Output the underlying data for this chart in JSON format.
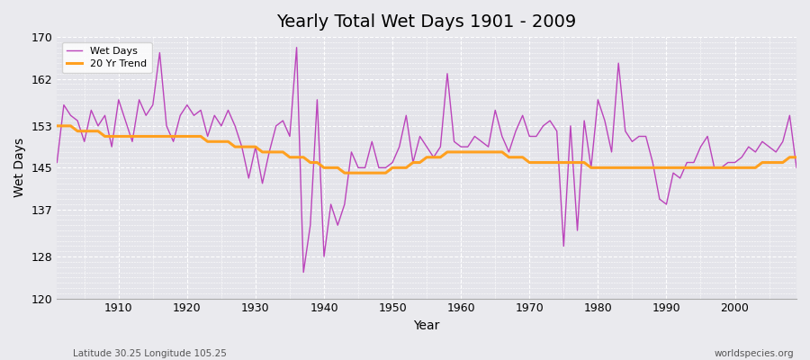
{
  "title": "Yearly Total Wet Days 1901 - 2009",
  "xlabel": "Year",
  "ylabel": "Wet Days",
  "footnote_left": "Latitude 30.25 Longitude 105.25",
  "footnote_right": "worldspecies.org",
  "ylim": [
    120,
    170
  ],
  "yticks": [
    120,
    128,
    137,
    145,
    153,
    162,
    170
  ],
  "line_color": "#bb44bb",
  "trend_color": "#ffa020",
  "bg_color": "#e8e8ec",
  "plot_bg_color": "#e0e0e8",
  "years": [
    1901,
    1902,
    1903,
    1904,
    1905,
    1906,
    1907,
    1908,
    1909,
    1910,
    1911,
    1912,
    1913,
    1914,
    1915,
    1916,
    1917,
    1918,
    1919,
    1920,
    1921,
    1922,
    1923,
    1924,
    1925,
    1926,
    1927,
    1928,
    1929,
    1930,
    1931,
    1932,
    1933,
    1934,
    1935,
    1936,
    1937,
    1938,
    1939,
    1940,
    1941,
    1942,
    1943,
    1944,
    1945,
    1946,
    1947,
    1948,
    1949,
    1950,
    1951,
    1952,
    1953,
    1954,
    1955,
    1956,
    1957,
    1958,
    1959,
    1960,
    1961,
    1962,
    1963,
    1964,
    1965,
    1966,
    1967,
    1968,
    1969,
    1970,
    1971,
    1972,
    1973,
    1974,
    1975,
    1976,
    1977,
    1978,
    1979,
    1980,
    1981,
    1982,
    1983,
    1984,
    1985,
    1986,
    1987,
    1988,
    1989,
    1990,
    1991,
    1992,
    1993,
    1994,
    1995,
    1996,
    1997,
    1998,
    1999,
    2000,
    2001,
    2002,
    2003,
    2004,
    2005,
    2006,
    2007,
    2008,
    2009
  ],
  "wet_days": [
    146,
    157,
    155,
    154,
    150,
    156,
    153,
    155,
    149,
    158,
    154,
    150,
    158,
    155,
    157,
    167,
    153,
    150,
    155,
    157,
    155,
    156,
    151,
    155,
    153,
    156,
    153,
    149,
    143,
    149,
    142,
    148,
    153,
    154,
    151,
    168,
    125,
    134,
    158,
    128,
    138,
    134,
    138,
    148,
    145,
    145,
    150,
    145,
    145,
    146,
    149,
    155,
    146,
    151,
    149,
    147,
    149,
    163,
    150,
    149,
    149,
    151,
    150,
    149,
    156,
    151,
    148,
    152,
    155,
    151,
    151,
    153,
    154,
    152,
    130,
    153,
    133,
    154,
    145,
    158,
    154,
    148,
    165,
    152,
    150,
    151,
    151,
    146,
    139,
    138,
    144,
    143,
    146,
    146,
    149,
    151,
    145,
    145,
    146,
    146,
    147,
    149,
    148,
    150,
    149,
    148,
    150,
    155,
    145
  ],
  "trend": [
    153,
    153,
    153,
    152,
    152,
    152,
    152,
    151,
    151,
    151,
    151,
    151,
    151,
    151,
    151,
    151,
    151,
    151,
    151,
    151,
    151,
    151,
    150,
    150,
    150,
    150,
    149,
    149,
    149,
    149,
    148,
    148,
    148,
    148,
    147,
    147,
    147,
    146,
    146,
    145,
    145,
    145,
    144,
    144,
    144,
    144,
    144,
    144,
    144,
    145,
    145,
    145,
    146,
    146,
    147,
    147,
    147,
    148,
    148,
    148,
    148,
    148,
    148,
    148,
    148,
    148,
    147,
    147,
    147,
    146,
    146,
    146,
    146,
    146,
    146,
    146,
    146,
    146,
    145,
    145,
    145,
    145,
    145,
    145,
    145,
    145,
    145,
    145,
    145,
    145,
    145,
    145,
    145,
    145,
    145,
    145,
    145,
    145,
    145,
    145,
    145,
    145,
    145,
    146,
    146,
    146,
    146,
    147,
    147
  ]
}
